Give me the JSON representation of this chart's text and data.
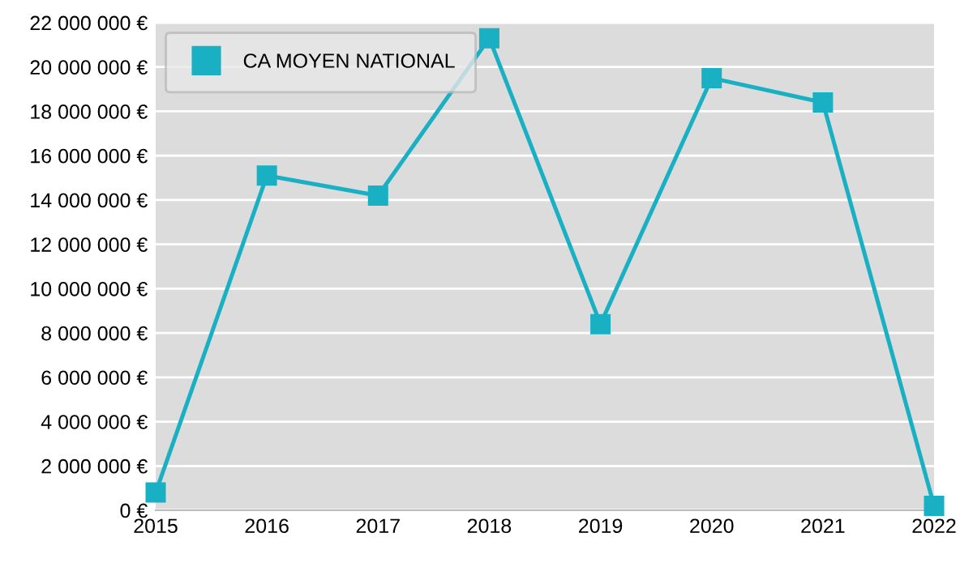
{
  "chart_data": {
    "type": "line",
    "x": [
      2015,
      2016,
      2017,
      2018,
      2019,
      2020,
      2021,
      2022
    ],
    "series": [
      {
        "name": "CA MOYEN NATIONAL",
        "color": "#19b0c4",
        "values": [
          800000,
          15100000,
          14200000,
          21300000,
          8400000,
          19500000,
          18400000,
          200000
        ]
      }
    ],
    "xlim": [
      2015,
      2022
    ],
    "xticks": [
      2015,
      2016,
      2017,
      2018,
      2019,
      2020,
      2021,
      2022
    ],
    "ylim": [
      0,
      22000000
    ],
    "yticks": [
      {
        "value": 0,
        "label": "0 €"
      },
      {
        "value": 2000000,
        "label": "2 000 000 €"
      },
      {
        "value": 4000000,
        "label": "4 000 000 €"
      },
      {
        "value": 6000000,
        "label": "6 000 000 €"
      },
      {
        "value": 8000000,
        "label": "8 000 000 €"
      },
      {
        "value": 10000000,
        "label": "10 000 000 €"
      },
      {
        "value": 12000000,
        "label": "12 000 000 €"
      },
      {
        "value": 14000000,
        "label": "14 000 000 €"
      },
      {
        "value": 16000000,
        "label": "16 000 000 €"
      },
      {
        "value": 18000000,
        "label": "18 000 000 €"
      },
      {
        "value": 20000000,
        "label": "20 000 000 €"
      },
      {
        "value": 22000000,
        "label": "22 000 000 €"
      }
    ],
    "grid": "y",
    "legend": "top left",
    "marker": "square",
    "line_style": "solid"
  }
}
